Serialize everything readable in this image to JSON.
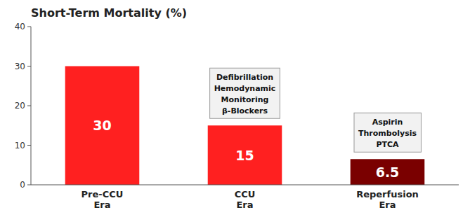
{
  "chart_data": {
    "type": "bar",
    "title": "Short-Term Mortality (%)",
    "categories": [
      "Pre-CCU\nEra",
      "CCU\nEra",
      "Reperfusion\nEra"
    ],
    "values": [
      30,
      15,
      6.5
    ],
    "colors": [
      "#ff2020",
      "#ff2020",
      "#7a0000"
    ],
    "data_labels": true,
    "ylim": [
      0,
      40
    ],
    "yticks": [
      0,
      10,
      20,
      30,
      40
    ],
    "grid": false,
    "annotations": [
      "Defibrillation\nHemodynamic\nMonitoring\nβ-Blockers",
      "Aspirin\nThrombolysis\nPTCA"
    ]
  }
}
